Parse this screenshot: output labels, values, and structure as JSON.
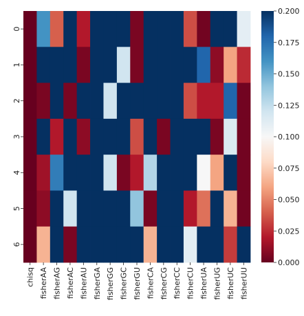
{
  "chart_data": {
    "type": "heatmap",
    "title": "",
    "xlabel": "",
    "ylabel": "",
    "x_labels": [
      "chisq",
      "fisherAA",
      "fisherAG",
      "fisherAC",
      "fisherAU",
      "fisherGA",
      "fisherGG",
      "fisherGC",
      "fisherGU",
      "fisherCA",
      "fisherCG",
      "fisherCC",
      "fisherCU",
      "fisherUA",
      "fisherUG",
      "fisherUC",
      "fisherUU"
    ],
    "y_labels": [
      "0",
      "1",
      "2",
      "3",
      "4",
      "5",
      "6"
    ],
    "values": [
      [
        0.0,
        0.16,
        0.04,
        0.2,
        0.02,
        0.2,
        0.2,
        0.2,
        0.005,
        0.2,
        0.2,
        0.2,
        0.035,
        0.003,
        0.2,
        0.2,
        0.11
      ],
      [
        0.0,
        0.2,
        0.2,
        0.2,
        0.005,
        0.2,
        0.2,
        0.12,
        0.005,
        0.2,
        0.2,
        0.2,
        0.2,
        0.18,
        0.01,
        0.06,
        0.025
      ],
      [
        0.0,
        0.005,
        0.2,
        0.005,
        0.2,
        0.2,
        0.12,
        0.2,
        0.2,
        0.2,
        0.2,
        0.2,
        0.035,
        0.02,
        0.02,
        0.18,
        0.003
      ],
      [
        0.0,
        0.2,
        0.02,
        0.2,
        0.01,
        0.2,
        0.2,
        0.2,
        0.035,
        0.2,
        0.005,
        0.2,
        0.2,
        0.2,
        0.005,
        0.115,
        0.003
      ],
      [
        0.0,
        0.015,
        0.17,
        0.2,
        0.2,
        0.2,
        0.12,
        0.005,
        0.02,
        0.13,
        0.2,
        0.2,
        0.2,
        0.1,
        0.06,
        0.2,
        0.003
      ],
      [
        0.0,
        0.01,
        0.2,
        0.12,
        0.2,
        0.2,
        0.2,
        0.2,
        0.14,
        0.005,
        0.2,
        0.2,
        0.02,
        0.045,
        0.2,
        0.065,
        0.003
      ],
      [
        0.0,
        0.065,
        0.2,
        0.005,
        0.2,
        0.2,
        0.2,
        0.2,
        0.2,
        0.065,
        0.2,
        0.2,
        0.11,
        0.2,
        0.2,
        0.03,
        0.2
      ]
    ],
    "vmin": 0.0,
    "vmax": 0.2,
    "colormap": "RdBu",
    "colorbar_ticks": [
      "0.000",
      "0.025",
      "0.050",
      "0.075",
      "0.100",
      "0.125",
      "0.150",
      "0.175",
      "0.200"
    ],
    "colorbar_tick_values": [
      0.0,
      0.025,
      0.05,
      0.075,
      0.1,
      0.125,
      0.15,
      0.175,
      0.2
    ],
    "colormap_stops": [
      "#67001f",
      "#b2182b",
      "#d6604d",
      "#f4a582",
      "#fddbc7",
      "#f7f7f7",
      "#d1e5f0",
      "#92c5de",
      "#4393c3",
      "#2166ac",
      "#053061"
    ]
  }
}
